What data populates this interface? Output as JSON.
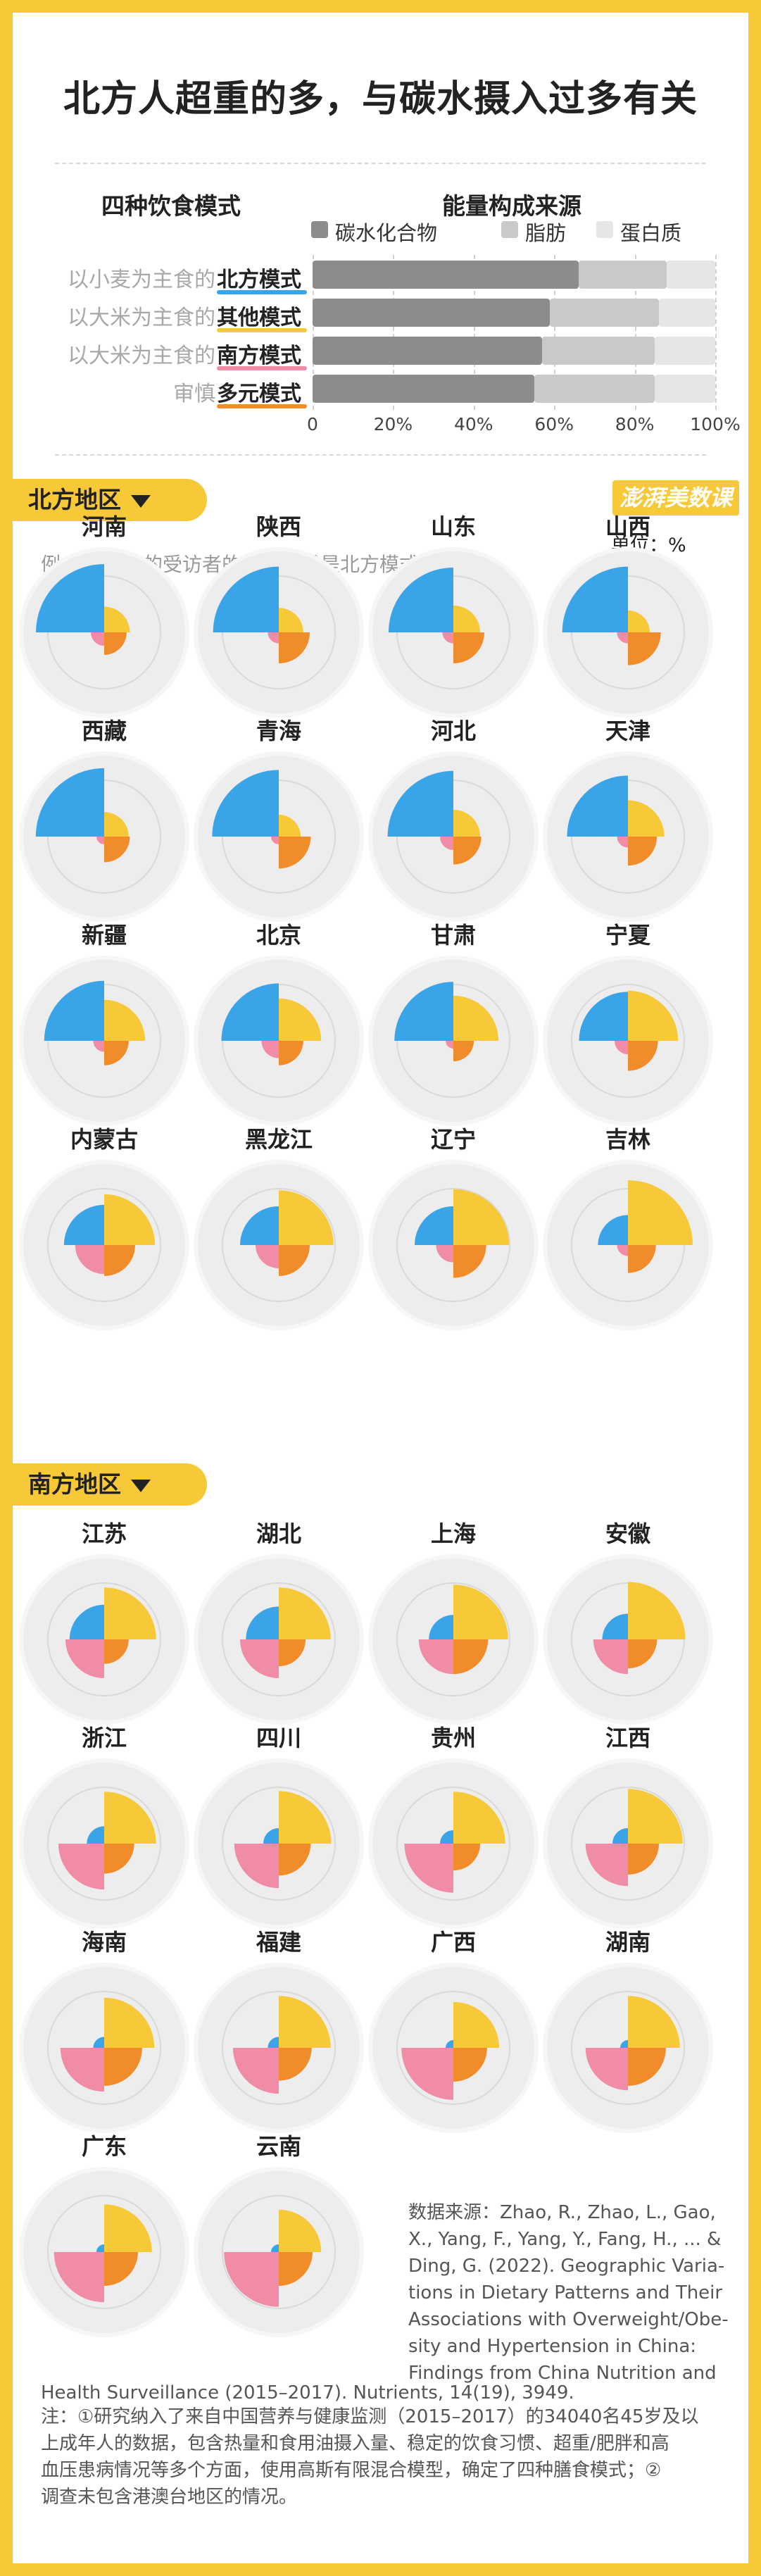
{
  "title": "北方人超重的多，与碳水摄入过多有关",
  "bar_section": {
    "left_header": "四种饮食模式",
    "right_header": "能量构成来源",
    "legend": [
      {
        "label": "碳水化合物",
        "color": "#8c8c8c"
      },
      {
        "label": "脂肪",
        "color": "#c9c9c9"
      },
      {
        "label": "蛋白质",
        "color": "#e6e6e6"
      }
    ],
    "rows": [
      {
        "prefix": "以小麦为主食的",
        "name": "北方模式",
        "underline": "#3aa4e8"
      },
      {
        "prefix": "以大米为主食的",
        "name": "其他模式",
        "underline": "#f7c837"
      },
      {
        "prefix": "以大米为主食的",
        "name": "南方模式",
        "underline": "#f08ca6"
      },
      {
        "prefix": "审慎",
        "name": "多元模式",
        "underline": "#f08c2a"
      }
    ]
  },
  "north": {
    "label": "北方地区",
    "unit": "单位：%",
    "example": "例：77.6%的受访者的饮食模式是北方模式"
  },
  "south": {
    "label": "南方地区"
  },
  "logo": {
    "text": "澎湃美数课"
  },
  "source": "数据来源：Zhao, R., Zhao, L., Gao, X., Yang, F., Yang, Y., Fang, H., ... & Ding, G. (2022). Geographic Variations in Dietary Patterns and Their Associations with Overweight/Obesity and Hypertension in China: Findings from China Nutrition and Health Surveillance (2015–2017). Nutrients, 14(19), 3949.",
  "source_lines": [
    "数据来源：Zhao, R., Zhao, L., Gao,",
    "X., Yang, F., Yang, Y., Fang, H., ... &",
    "Ding, G. (2022). Geographic Varia-",
    "tions in Dietary Patterns and Their",
    "Associations with Overweight/Obe-",
    "sity and Hypertension in China:",
    "Findings from China Nutrition and",
    "Health Surveillance (2015–2017). Nutrients, 14(19), 3949."
  ],
  "note_lines": [
    "注：①研究纳入了来自中国营养与健康监测（2015–2017）的34040名45岁及以",
    "上成年人的数据，包含热量和食用油摄入量、稳定的饮食习惯、超重/肥胖和高",
    "血压患病情况等多个方面，使用高斯有限混合模型，确定了四种膳食模式；②",
    "调查未包含港澳台地区的情况。"
  ],
  "chart_data": [
    {
      "type": "bar",
      "title": "能量构成来源",
      "orientation": "horizontal",
      "stacked": true,
      "categories": [
        "北方模式",
        "其他模式",
        "南方模式",
        "多元模式"
      ],
      "series": [
        {
          "name": "碳水化合物",
          "values": [
            66,
            59,
            57,
            55
          ]
        },
        {
          "name": "脂肪",
          "values": [
            22,
            27,
            28,
            30
          ]
        },
        {
          "name": "蛋白质",
          "values": [
            12,
            14,
            15,
            15
          ]
        }
      ],
      "xlim": [
        0,
        100
      ],
      "xticks": [
        "0",
        "20%",
        "40%",
        "60%",
        "80%",
        "100%"
      ]
    },
    {
      "type": "polar-quadrant",
      "unit": "%",
      "quadrants": {
        "北方模式": "top-left",
        "其他模式": "top-right",
        "南方模式": "bottom-left",
        "多元模式": "bottom-right"
      },
      "colors": {
        "北方模式": "#3aa4e8",
        "其他模式": "#f7c837",
        "南方模式": "#f08ca6",
        "多元模式": "#f08c2a"
      },
      "provinces": [
        {
          "name": "河南",
          "region": "北方地区",
          "values": [
            77.6,
            11,
            3,
            8.4
          ]
        },
        {
          "name": "陕西",
          "region": "北方地区",
          "values": [
            72,
            10,
            2,
            16
          ]
        },
        {
          "name": "山东",
          "region": "北方地区",
          "values": [
            70,
            12,
            2,
            16
          ]
        },
        {
          "name": "山西",
          "region": "北方地区",
          "values": [
            72,
            8,
            2,
            18
          ]
        },
        {
          "name": "西藏",
          "region": "北方地区",
          "values": [
            78,
            10,
            1,
            11
          ]
        },
        {
          "name": "青海",
          "region": "北方地区",
          "values": [
            74,
            8,
            1,
            17
          ]
        },
        {
          "name": "河北",
          "region": "北方地区",
          "values": [
            72,
            12,
            3,
            13
          ]
        },
        {
          "name": "天津",
          "region": "北方地区",
          "values": [
            62,
            22,
            2,
            14
          ]
        },
        {
          "name": "新疆",
          "region": "北方地区",
          "values": [
            60,
            28,
            2,
            10
          ]
        },
        {
          "name": "北京",
          "region": "北方地区",
          "values": [
            55,
            30,
            5,
            10
          ]
        },
        {
          "name": "甘肃",
          "region": "北方地区",
          "values": [
            58,
            34,
            1,
            7
          ]
        },
        {
          "name": "宁夏",
          "region": "北方地区",
          "values": [
            40,
            42,
            3,
            15
          ]
        },
        {
          "name": "内蒙古",
          "region": "北方地区",
          "values": [
            27,
            43,
            14,
            16
          ]
        },
        {
          "name": "黑龙江",
          "region": "北方地区",
          "values": [
            25,
            50,
            9,
            16
          ]
        },
        {
          "name": "辽宁",
          "region": "北方地区",
          "values": [
            25,
            52,
            5,
            18
          ]
        },
        {
          "name": "吉林",
          "region": "北方地区",
          "values": [
            15,
            70,
            2,
            13
          ]
        },
        {
          "name": "江苏",
          "region": "南方地区",
          "values": [
            20,
            45,
            25,
            10
          ]
        },
        {
          "name": "湖北",
          "region": "南方地区",
          "values": [
            18,
            45,
            25,
            12
          ]
        },
        {
          "name": "上海",
          "region": "南方地区",
          "values": [
            10,
            50,
            20,
            20
          ]
        },
        {
          "name": "安徽",
          "region": "南方地区",
          "values": [
            11,
            55,
            20,
            14
          ]
        },
        {
          "name": "浙江",
          "region": "南方地区",
          "values": [
            5,
            45,
            35,
            15
          ]
        },
        {
          "name": "四川",
          "region": "南方地区",
          "values": [
            4,
            46,
            33,
            17
          ]
        },
        {
          "name": "贵州",
          "region": "南方地区",
          "values": [
            3,
            45,
            40,
            12
          ]
        },
        {
          "name": "江西",
          "region": "南方地区",
          "values": [
            4,
            50,
            30,
            16
          ]
        },
        {
          "name": "海南",
          "region": "南方地区",
          "values": [
            2,
            42,
            32,
            24
          ]
        },
        {
          "name": "福建",
          "region": "南方地区",
          "values": [
            2,
            45,
            35,
            18
          ]
        },
        {
          "name": "广西",
          "region": "南方地区",
          "values": [
            1,
            35,
            45,
            19
          ]
        },
        {
          "name": "湖南",
          "region": "南方地区",
          "values": [
            1,
            45,
            30,
            24
          ]
        },
        {
          "name": "广东",
          "region": "南方地区",
          "values": [
            1,
            38,
            42,
            19
          ]
        },
        {
          "name": "云南",
          "region": "南方地区",
          "values": [
            1,
            30,
            50,
            19
          ]
        }
      ]
    }
  ]
}
